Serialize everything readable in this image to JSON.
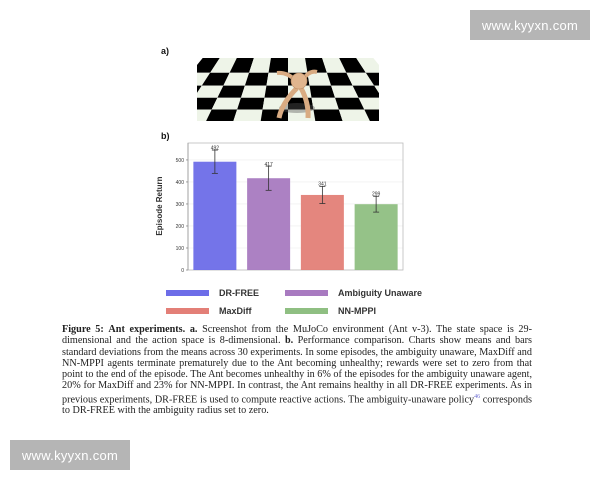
{
  "panel_labels": {
    "a": "a)",
    "b": "b)"
  },
  "watermarks": [
    "www.kyyxn.com",
    "www.kyyxn.com"
  ],
  "chart_data": {
    "type": "bar",
    "categories": [
      "DR-FREE",
      "Ambiguity Unaware",
      "MaxDiff",
      "NN-MPPI"
    ],
    "values": [
      492,
      417,
      341,
      299
    ],
    "error": [
      53,
      55,
      39,
      36
    ],
    "data_labels": [
      "492",
      "417",
      "341",
      "299"
    ],
    "colors": [
      "#6d6de8",
      "#a87ac0",
      "#e37f77",
      "#8fbf82"
    ],
    "ylabel": "Episode Return",
    "xlabel": "",
    "ylim": [
      0,
      577
    ],
    "yticks": [
      0,
      100,
      200,
      300,
      400,
      500
    ],
    "ytick_labels": [
      "0",
      "100",
      "200",
      "300",
      "400",
      "500"
    ],
    "grid": true,
    "legend": {
      "placement": "bottom",
      "entries": [
        "DR-FREE",
        "Ambiguity Unaware",
        "MaxDiff",
        "NN-MPPI"
      ]
    }
  },
  "caption": {
    "figure_label": "Figure 5:",
    "title": "Ant experiments.",
    "a_label": "a.",
    "a_text": "Screenshot from the MuJoCo environment (Ant v-3). The state space is 29-dimensional and the action space is 8-dimensional.",
    "b_label": "b.",
    "b_text": "Performance comparison. Charts show means and bars standard deviations from the means across 30 experiments. In some episodes, the ambiguity unaware, MaxDiff and NN-MPPI agents terminate prematurely due to the Ant becoming unhealthy; rewards were set to zero from that point to the end of the episode. The Ant becomes unhealthy in 6% of the episodes for the ambiguity unaware agent, 20% for MaxDiff and 23% for NN-MPPI. In contrast, the Ant remains healthy in all DR-FREE experiments. As in previous experiments, DR-FREE is used to compute reactive actions. The ambiguity-unaware policy",
    "ref": "46",
    "tail_text": "corresponds to DR-FREE with the ambiguity radius set to zero."
  }
}
